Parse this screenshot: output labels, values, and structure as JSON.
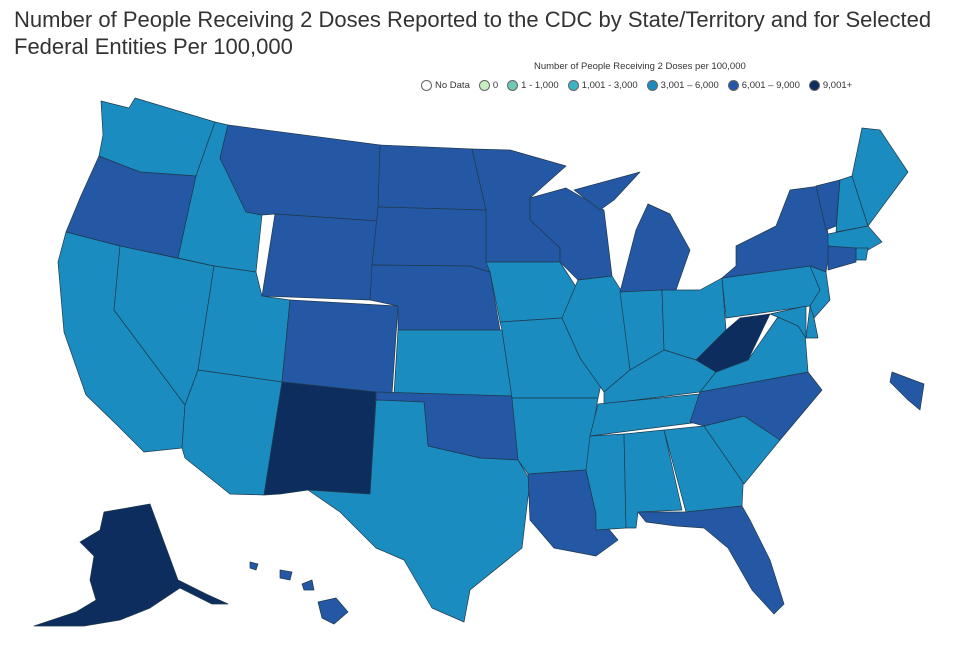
{
  "title": "Number of People Receiving 2 Doses Reported to the CDC by State/Territory and for Selected Federal Entities Per 100,000",
  "legend": {
    "title": "Number of People Receiving 2 Doses per 100,000",
    "items": [
      {
        "label": "No Data",
        "color": "#ffffff"
      },
      {
        "label": "0",
        "color": "#c7f0c2"
      },
      {
        "label": "1 - 1,000",
        "color": "#6cc9b4"
      },
      {
        "label": "1,001 - 3,000",
        "color": "#3fb3c6"
      },
      {
        "label": "3,001 – 6,000",
        "color": "#1b8cbf"
      },
      {
        "label": "6,001 – 9,000",
        "color": "#2457a4"
      },
      {
        "label": "9,001+",
        "color": "#0c2d5e"
      }
    ]
  },
  "map_data": {
    "bins": {
      "b3": "#1b8cbf",
      "b4": "#2457a4",
      "b5": "#0c2d5e"
    },
    "states": {
      "WA": "b3",
      "OR": "b4",
      "CA": "b3",
      "NV": "b3",
      "ID": "b3",
      "MT": "b4",
      "WY": "b4",
      "UT": "b3",
      "AZ": "b3",
      "CO": "b4",
      "NM": "b5",
      "ND": "b4",
      "SD": "b4",
      "NE": "b4",
      "KS": "b3",
      "OK": "b4",
      "TX": "b3",
      "MN": "b4",
      "IA": "b3",
      "MO": "b3",
      "AR": "b3",
      "LA": "b4",
      "WI": "b4",
      "IL": "b3",
      "MI": "b4",
      "IN": "b3",
      "OH": "b3",
      "KY": "b3",
      "TN": "b3",
      "MS": "b3",
      "AL": "b3",
      "GA": "b3",
      "FL": "b4",
      "SC": "b3",
      "NC": "b4",
      "VA": "b3",
      "WV": "b5",
      "PA": "b3",
      "NY": "b4",
      "VT": "b4",
      "NH": "b3",
      "ME": "b3",
      "MA": "b3",
      "RI": "b3",
      "CT": "b4",
      "NJ": "b3",
      "DE": "b3",
      "MD": "b3",
      "AK": "b5",
      "HI": "b4",
      "PR": "b4"
    }
  }
}
